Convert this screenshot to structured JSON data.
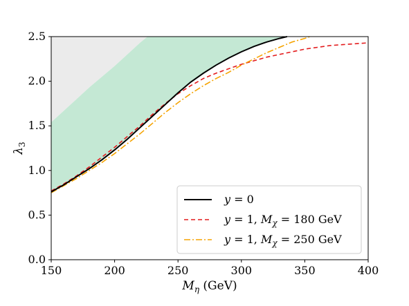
{
  "chart_data": {
    "type": "line",
    "xlabel": "M_η (GeV)",
    "ylabel": "λ₃",
    "xlim": [
      150,
      400
    ],
    "ylim": [
      0.0,
      2.5
    ],
    "x_ticks": [
      "150",
      "200",
      "250",
      "300",
      "350",
      "400"
    ],
    "y_ticks": [
      "0.0",
      "0.5",
      "1.0",
      "1.5",
      "2.0",
      "2.5"
    ],
    "grid": false,
    "legend_position": "lower-right",
    "colors": {
      "excluded_region": "#ebebeb",
      "allowed_region": "#c4e8d4",
      "y0": "#000000",
      "y1_m180": "#e31a1c",
      "y1_m250": "#f5a300"
    },
    "regions": [
      {
        "id": "excluded",
        "upper": "top",
        "lower_x": [
          150,
          160,
          170,
          180,
          190,
          200,
          210,
          220,
          226
        ],
        "lower_y": [
          1.54,
          1.67,
          1.8,
          1.93,
          2.05,
          2.17,
          2.3,
          2.43,
          2.5
        ]
      },
      {
        "id": "allowed",
        "upper_x": [
          150,
          160,
          170,
          180,
          190,
          200,
          210,
          220,
          226
        ],
        "upper_y": [
          1.54,
          1.67,
          1.8,
          1.93,
          2.05,
          2.17,
          2.3,
          2.43,
          2.5
        ]
      }
    ],
    "series": [
      {
        "name": "y = 0",
        "style": "solid",
        "x": [
          150,
          160,
          170,
          180,
          190,
          200,
          210,
          220,
          230,
          240,
          250,
          260,
          270,
          280,
          290,
          300,
          310,
          320,
          330,
          336
        ],
        "y": [
          0.76,
          0.84,
          0.93,
          1.02,
          1.12,
          1.23,
          1.35,
          1.48,
          1.61,
          1.74,
          1.87,
          1.99,
          2.09,
          2.18,
          2.26,
          2.33,
          2.39,
          2.44,
          2.48,
          2.5
        ]
      },
      {
        "name": "y = 1, M_χ = 180 GeV",
        "style": "dashed",
        "x": [
          150,
          160,
          170,
          180,
          190,
          200,
          210,
          220,
          230,
          240,
          250,
          260,
          270,
          280,
          290,
          300,
          310,
          320,
          330,
          340,
          350,
          360,
          370,
          380,
          390,
          400
        ],
        "y": [
          0.77,
          0.85,
          0.94,
          1.04,
          1.15,
          1.26,
          1.38,
          1.5,
          1.63,
          1.75,
          1.86,
          1.95,
          2.03,
          2.09,
          2.14,
          2.19,
          2.23,
          2.27,
          2.3,
          2.33,
          2.36,
          2.38,
          2.4,
          2.41,
          2.42,
          2.43
        ]
      },
      {
        "name": "y = 1, M_χ = 250 GeV",
        "style": "dashdot",
        "x": [
          150,
          160,
          170,
          180,
          190,
          200,
          210,
          220,
          230,
          240,
          250,
          260,
          270,
          280,
          290,
          300,
          310,
          320,
          330,
          340,
          350,
          354
        ],
        "y": [
          0.75,
          0.83,
          0.91,
          1.0,
          1.09,
          1.19,
          1.3,
          1.41,
          1.53,
          1.65,
          1.76,
          1.86,
          1.95,
          2.03,
          2.1,
          2.18,
          2.25,
          2.32,
          2.38,
          2.44,
          2.48,
          2.5
        ]
      }
    ],
    "legend": {
      "entries": [
        {
          "series": 0,
          "label_html": "<tspan font-style='italic'>y</tspan> = 0"
        },
        {
          "series": 1,
          "label_html": "<tspan font-style='italic'>y</tspan> = 1, <tspan font-style='italic'>M</tspan><tspan font-style='italic' font-size='12' dy='4'>χ</tspan><tspan dy='-4'> = 180 GeV</tspan>"
        },
        {
          "series": 2,
          "label_html": "<tspan font-style='italic'>y</tspan> = 1, <tspan font-style='italic'>M</tspan><tspan font-style='italic' font-size='12' dy='4'>χ</tspan><tspan dy='-4'> = 250 GeV</tspan>"
        }
      ]
    }
  }
}
